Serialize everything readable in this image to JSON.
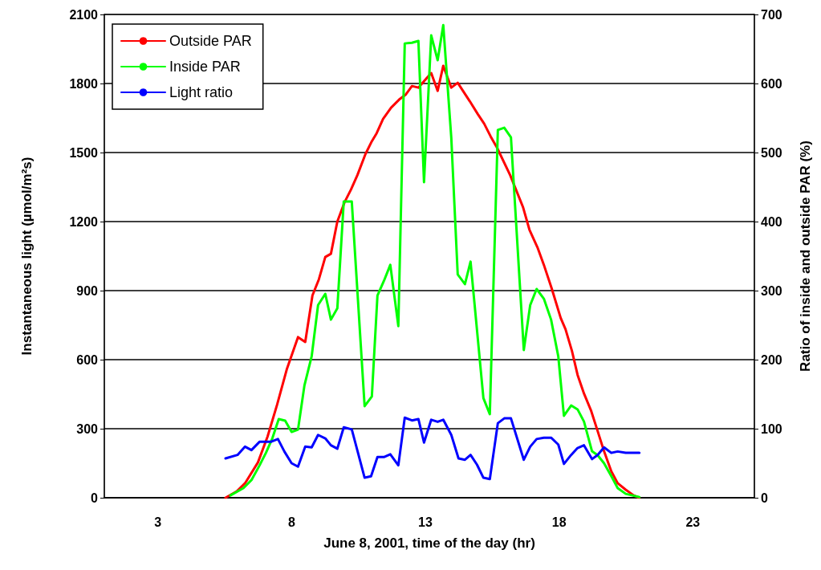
{
  "chart_data": {
    "type": "line",
    "xlabel": "June 8, 2001, time of the day (hr)",
    "ylabel": "Instantaneous light (µmol/m²s)",
    "y2label": "Ratio of inside and outside PAR (%)",
    "xlim": [
      1,
      25.3
    ],
    "xticks": [
      3,
      8,
      13,
      18,
      23
    ],
    "ylim": [
      0,
      2100
    ],
    "yticks": [
      0,
      300,
      600,
      900,
      1200,
      1500,
      1800,
      2100
    ],
    "y2lim": [
      0,
      700
    ],
    "y2ticks": [
      0,
      100,
      200,
      300,
      400,
      500,
      600,
      700
    ],
    "grid": "y",
    "legend": "top left",
    "marker": "none",
    "line_style": "solid",
    "series": [
      {
        "name": "Outside PAR",
        "color": "#ff0000",
        "x": [
          5.53,
          5.95,
          6.26,
          6.74,
          7.1,
          7.46,
          7.82,
          8.24,
          8.51,
          8.78,
          9.02,
          9.26,
          9.47,
          9.71,
          9.98,
          10.22,
          10.46,
          10.76,
          11.0,
          11.18,
          11.42,
          11.72,
          12.02,
          12.26,
          12.5,
          12.74,
          12.98,
          13.22,
          13.46,
          13.67,
          13.97,
          14.21,
          14.66,
          14.96,
          15.2,
          15.44,
          15.68,
          16.17,
          16.65,
          16.89,
          17.19,
          17.43,
          17.73,
          18.06,
          18.24,
          18.48,
          18.69,
          18.93,
          19.2,
          19.44,
          19.68,
          19.95,
          20.19,
          20.49,
          20.79,
          21.0
        ],
        "values": [
          0,
          28,
          63,
          153,
          265,
          405,
          558,
          698,
          677,
          879,
          949,
          1046,
          1060,
          1200,
          1284,
          1339,
          1402,
          1493,
          1549,
          1584,
          1646,
          1695,
          1730,
          1751,
          1789,
          1782,
          1814,
          1845,
          1768,
          1877,
          1782,
          1803,
          1723,
          1667,
          1625,
          1570,
          1521,
          1402,
          1263,
          1165,
          1088,
          1012,
          907,
          781,
          732,
          638,
          534,
          453,
          377,
          290,
          202,
          115,
          63,
          35,
          10,
          0
        ]
      },
      {
        "name": "Inside PAR",
        "color": "#00ff00",
        "x": [
          5.71,
          6.2,
          6.5,
          6.8,
          7.04,
          7.28,
          7.52,
          7.76,
          8.0,
          8.24,
          8.48,
          8.75,
          8.99,
          9.26,
          9.47,
          9.71,
          9.95,
          10.25,
          10.73,
          11.0,
          11.21,
          11.45,
          11.69,
          11.99,
          12.23,
          12.5,
          12.74,
          12.95,
          13.22,
          13.46,
          13.67,
          13.97,
          14.21,
          14.48,
          14.69,
          15.17,
          15.41,
          15.71,
          15.95,
          16.2,
          16.68,
          16.92,
          17.16,
          17.43,
          17.7,
          17.97,
          18.18,
          18.45,
          18.69,
          18.93,
          19.23,
          19.44,
          19.68,
          19.95,
          20.19,
          20.49,
          21.0
        ],
        "values": [
          10,
          42,
          77,
          140,
          195,
          258,
          342,
          335,
          286,
          296,
          488,
          614,
          837,
          886,
          774,
          823,
          1287,
          1287,
          398,
          440,
          879,
          942,
          1012,
          746,
          1974,
          1977,
          1985,
          1371,
          2009,
          1901,
          2054,
          1563,
          970,
          928,
          1026,
          433,
          363,
          1598,
          1608,
          1566,
          642,
          837,
          907,
          865,
          774,
          614,
          356,
          401,
          384,
          331,
          202,
          185,
          150,
          94,
          42,
          17,
          3
        ]
      },
      {
        "name": "Light ratio",
        "color": "#0000ff",
        "axis": "y2",
        "x": [
          5.53,
          5.98,
          6.26,
          6.5,
          6.8,
          7.22,
          7.49,
          7.73,
          8.0,
          8.24,
          8.51,
          8.75,
          8.99,
          9.26,
          9.47,
          9.71,
          9.95,
          10.25,
          10.73,
          10.97,
          11.21,
          11.45,
          11.69,
          11.99,
          12.23,
          12.5,
          12.74,
          12.95,
          13.22,
          13.46,
          13.67,
          13.97,
          14.24,
          14.48,
          14.69,
          14.93,
          15.17,
          15.41,
          15.71,
          15.95,
          16.2,
          16.68,
          16.92,
          17.16,
          17.43,
          17.7,
          17.97,
          18.18,
          18.45,
          18.69,
          18.93,
          19.23,
          19.44,
          19.68,
          19.95,
          20.19,
          20.49,
          21.0
        ],
        "values": [
          57,
          62,
          74,
          69,
          81,
          81,
          85,
          67,
          50,
          45,
          74,
          73,
          91,
          86,
          76,
          71,
          102,
          99,
          29,
          31,
          59,
          59,
          63,
          47,
          116,
          112,
          114,
          80,
          113,
          110,
          113,
          91,
          57,
          55,
          62,
          48,
          29,
          27,
          108,
          115,
          115,
          55,
          74,
          85,
          87,
          87,
          77,
          49,
          62,
          72,
          76,
          56,
          62,
          73,
          65,
          67,
          65,
          65
        ]
      }
    ]
  }
}
